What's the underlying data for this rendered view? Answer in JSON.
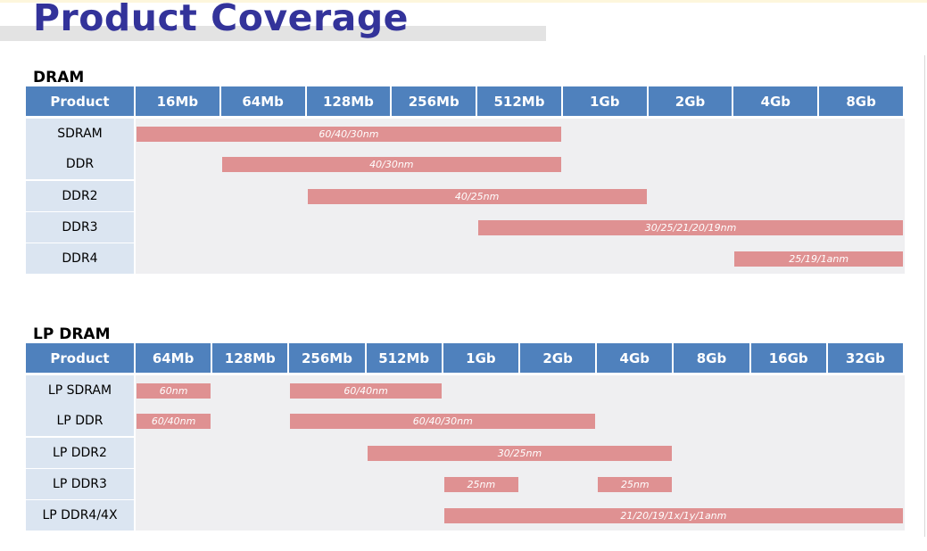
{
  "title": "Product Coverage",
  "sections": [
    {
      "name": "DRAM",
      "header": [
        "Product",
        "16Mb",
        "64Mb",
        "128Mb",
        "256Mb",
        "512Mb",
        "1Gb",
        "2Gb",
        "4Gb",
        "8Gb"
      ],
      "rows": [
        {
          "product": "SDRAM",
          "bars": [
            {
              "from": "16Mb",
              "to": "512Mb",
              "label": "60/40/30nm"
            }
          ]
        },
        {
          "product": "DDR",
          "bars": [
            {
              "from": "64Mb",
              "to": "512Mb",
              "label": "40/30nm"
            }
          ]
        },
        {
          "product": "DDR2",
          "bars": [
            {
              "from": "128Mb",
              "to": "1Gb",
              "label": "40/25nm"
            }
          ]
        },
        {
          "product": "DDR3",
          "bars": [
            {
              "from": "512Mb",
              "to": "8Gb",
              "label": "30/25/21/20/19nm"
            }
          ]
        },
        {
          "product": "DDR4",
          "bars": [
            {
              "from": "4Gb",
              "to": "8Gb",
              "label": "25/19/1anm"
            }
          ]
        }
      ]
    },
    {
      "name": "LP DRAM",
      "header": [
        "Product",
        "64Mb",
        "128Mb",
        "256Mb",
        "512Mb",
        "1Gb",
        "2Gb",
        "4Gb",
        "8Gb",
        "16Gb",
        "32Gb"
      ],
      "rows": [
        {
          "product": "LP SDRAM",
          "bars": [
            {
              "from": "64Mb",
              "to": "64Mb",
              "label": "60nm"
            },
            {
              "from": "256Mb",
              "to": "512Mb",
              "label": "60/40nm"
            }
          ]
        },
        {
          "product": "LP DDR",
          "bars": [
            {
              "from": "64Mb",
              "to": "64Mb",
              "label": "60/40nm"
            },
            {
              "from": "256Mb",
              "to": "2Gb",
              "label": "60/40/30nm"
            }
          ]
        },
        {
          "product": "LP DDR2",
          "bars": [
            {
              "from": "512Mb",
              "to": "4Gb",
              "label": "30/25nm"
            }
          ]
        },
        {
          "product": "LP DDR3",
          "bars": [
            {
              "from": "1Gb",
              "to": "1Gb",
              "label": "25nm"
            },
            {
              "from": "4Gb",
              "to": "4Gb",
              "label": "25nm"
            }
          ]
        },
        {
          "product": "LP DDR4/4X",
          "bars": [
            {
              "from": "1Gb",
              "to": "32Gb",
              "label": "21/20/19/1x/1y/1anm"
            }
          ]
        }
      ]
    }
  ]
}
